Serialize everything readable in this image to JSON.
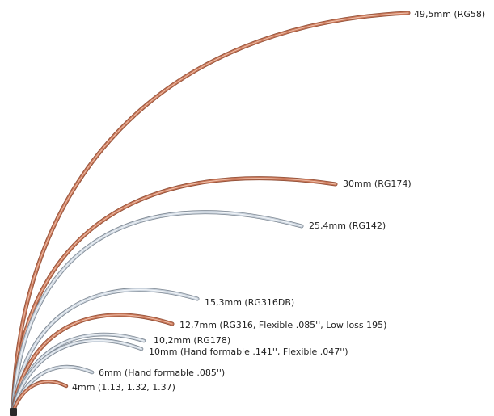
{
  "colors": {
    "copper": "#c9785a",
    "copper_edge": "#8f4e36",
    "copper_highlight": "#f0c3ae",
    "silver": "#c9d2dc",
    "silver_edge": "#7b8590",
    "silver_highlight": "#f5f8fb",
    "connector": "#2a2a2a"
  },
  "icons": {
    "connector": "connector-block-icon"
  },
  "cables": [
    {
      "id": "rg58",
      "label": "49,5mm  (RG58)",
      "material": "copper"
    },
    {
      "id": "rg174",
      "label": "30mm  (RG174)",
      "material": "copper"
    },
    {
      "id": "rg142",
      "label": "25,4mm  (RG142)",
      "material": "silver"
    },
    {
      "id": "rg316db",
      "label": "15,3mm  (RG316DB)",
      "material": "silver"
    },
    {
      "id": "rg316",
      "label": "12,7mm  (RG316, Flexible .085'', Low loss 195)",
      "material": "copper"
    },
    {
      "id": "rg178",
      "label": "10,2mm  (RG178)",
      "material": "silver"
    },
    {
      "id": "hf141",
      "label": "10mm  (Hand formable .141'', Flexible .047'')",
      "material": "silver"
    },
    {
      "id": "hf085",
      "label": "6mm  (Hand formable .085'')",
      "material": "silver"
    },
    {
      "id": "micro",
      "label": "4mm  (1.13, 1.32, 1.37)",
      "material": "copper"
    }
  ]
}
